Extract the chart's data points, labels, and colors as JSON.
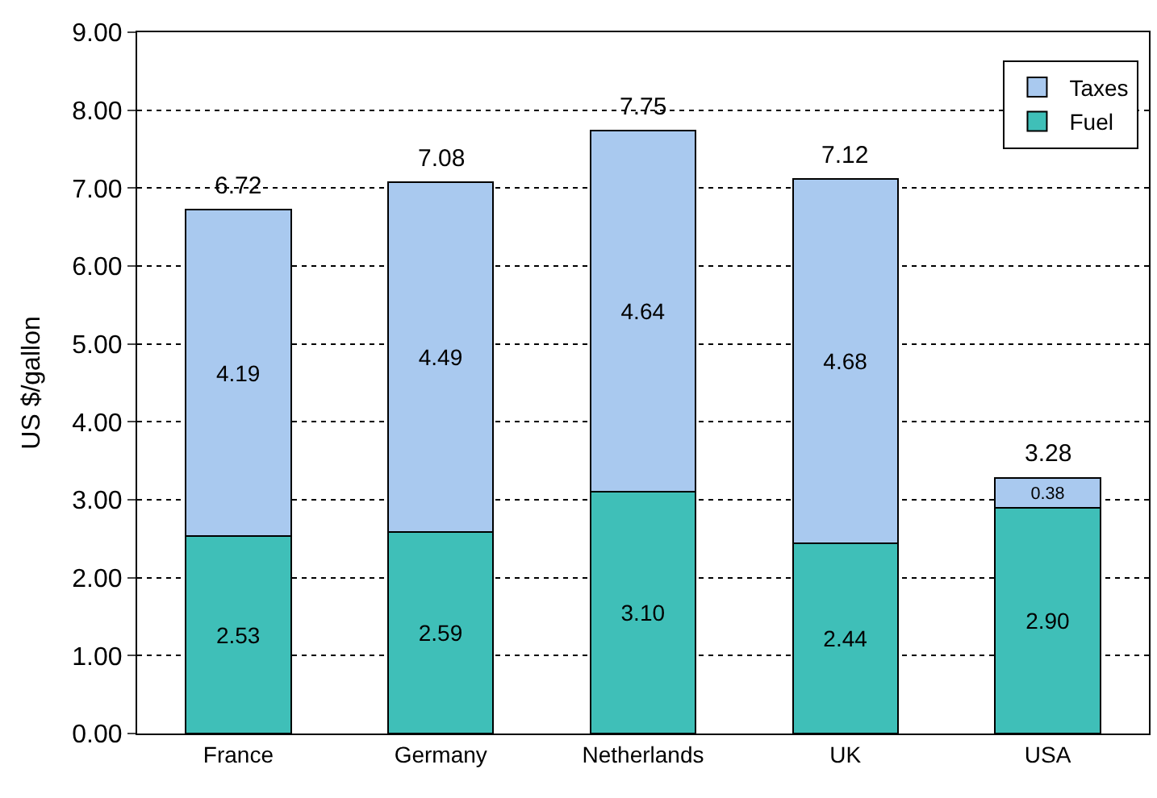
{
  "chart_data": {
    "type": "bar",
    "stacked": true,
    "ylabel": "US $/gallon",
    "categories": [
      "France",
      "Germany",
      "Netherlands",
      "UK",
      "USA"
    ],
    "series": [
      {
        "name": "Fuel",
        "color": "#3fbfb8",
        "values": [
          2.53,
          2.59,
          3.1,
          2.44,
          2.9
        ],
        "value_labels": [
          "2.53",
          "2.59",
          "3.10",
          "2.44",
          "2.90"
        ]
      },
      {
        "name": "Taxes",
        "color": "#a9c9ef",
        "values": [
          4.19,
          4.49,
          4.64,
          4.68,
          0.38
        ],
        "value_labels": [
          "4.19",
          "4.49",
          "4.64",
          "4.68",
          "0.38"
        ]
      }
    ],
    "totals": [
      "6.72",
      "7.08",
      "7.75",
      "7.12",
      "3.28"
    ],
    "ylim": [
      0,
      9
    ],
    "yticks": [
      {
        "value": 0,
        "label": "0.00"
      },
      {
        "value": 1,
        "label": "1.00"
      },
      {
        "value": 2,
        "label": "2.00"
      },
      {
        "value": 3,
        "label": "3.00"
      },
      {
        "value": 4,
        "label": "4.00"
      },
      {
        "value": 5,
        "label": "5.00"
      },
      {
        "value": 6,
        "label": "6.00"
      },
      {
        "value": 7,
        "label": "7.00"
      },
      {
        "value": 8,
        "label": "8.00"
      },
      {
        "value": 9,
        "label": "9.00"
      }
    ],
    "grid": "y",
    "legend": "top right"
  }
}
